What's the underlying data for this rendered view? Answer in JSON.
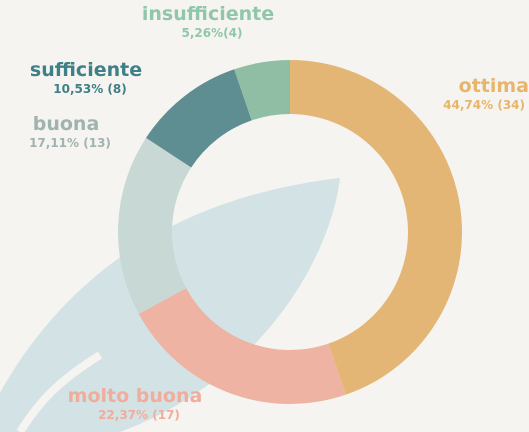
{
  "chart_data": {
    "type": "donut",
    "categories": [
      "ottima",
      "molto buona",
      "buona",
      "sufficiente",
      "insufficiente"
    ],
    "values": [
      44.74,
      22.37,
      17.11,
      10.53,
      5.26
    ],
    "value_labels": [
      "44,74% (34)",
      "22,37% (17)",
      "17,11% (13)",
      "10,53% (8)",
      "5,26%(4)"
    ],
    "colors": [
      "#e3b676",
      "#eeb3a2",
      "#c8d8d5",
      "#5f8e92",
      "#8fbea4"
    ],
    "label_colors": [
      "#e7b56c",
      "#f0ad9b",
      "#a0b3b1",
      "#3f7f87",
      "#90c6aa"
    ]
  }
}
